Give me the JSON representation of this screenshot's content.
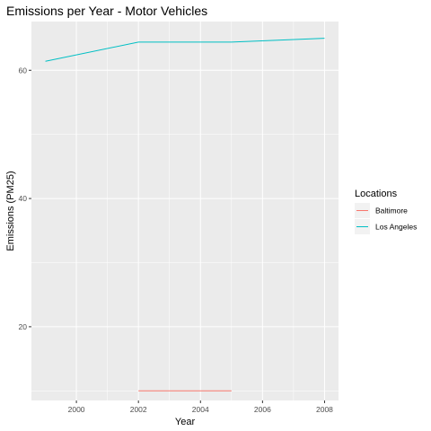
{
  "chart_data": {
    "type": "line",
    "title": "Emissions per Year - Motor Vehicles",
    "xlabel": "Year",
    "ylabel": "Emissions (PM25)",
    "xlim": [
      1998.55,
      2008.45
    ],
    "ylim": [
      8.5,
      67.6
    ],
    "x_ticks": [
      2000,
      2002,
      2004,
      2006,
      2008
    ],
    "y_ticks": [
      20,
      40,
      60
    ],
    "grid": true,
    "legend": {
      "title": "Locations",
      "position": "right"
    },
    "series": [
      {
        "name": "Baltimore",
        "color": "#F8766D",
        "x": [
          2002,
          2005
        ],
        "y": [
          10,
          10
        ]
      },
      {
        "name": "Los Angeles",
        "color": "#00BFC4",
        "x": [
          1999,
          2002,
          2005,
          2008
        ],
        "y": [
          61.4,
          64.4,
          64.4,
          65.0
        ]
      }
    ]
  }
}
